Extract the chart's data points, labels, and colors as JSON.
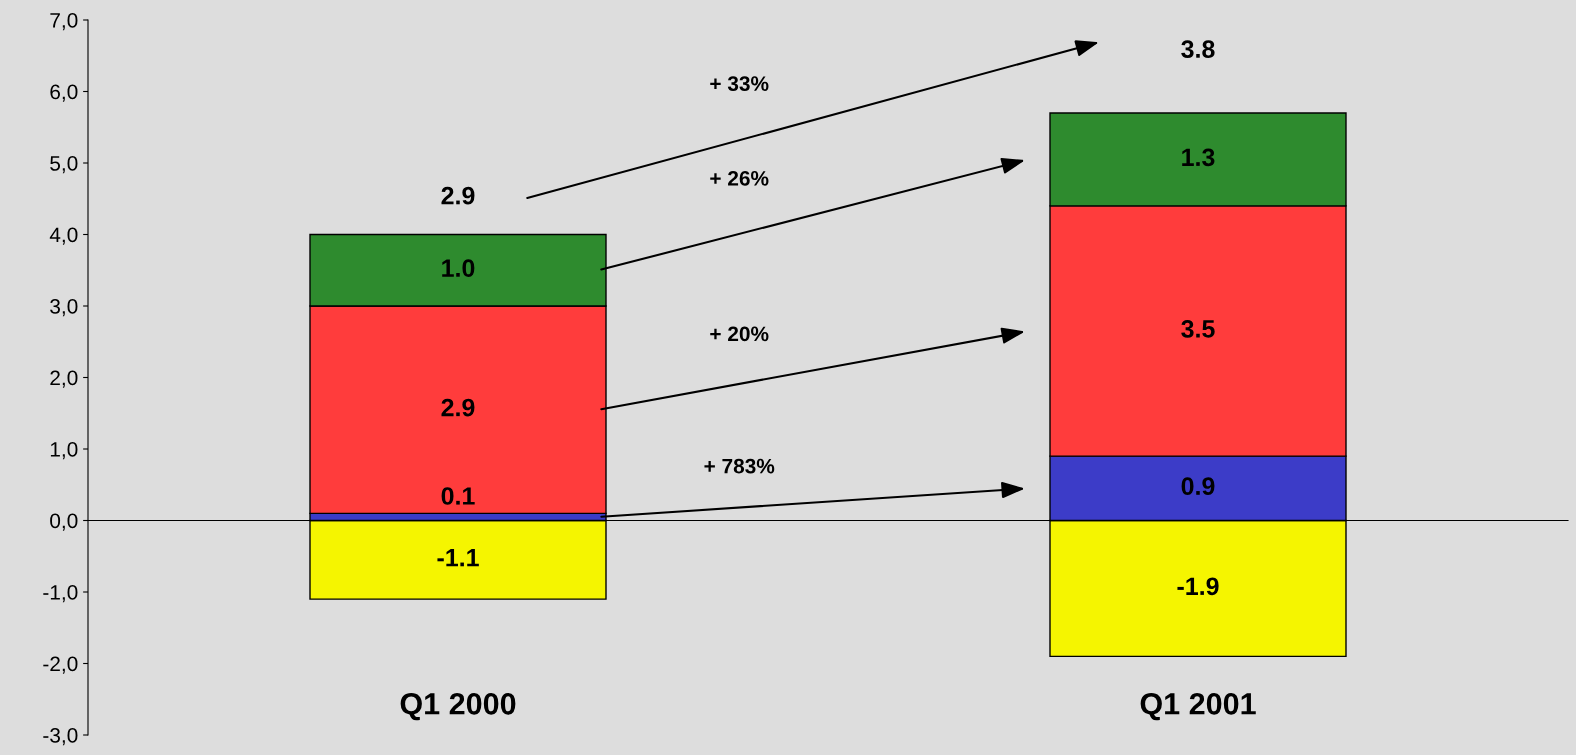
{
  "chart_data": {
    "type": "bar",
    "stacked": true,
    "categories": [
      "Q1 2000",
      "Q1 2001"
    ],
    "series": [
      {
        "color": "#f5f500",
        "values": [
          -1.1,
          -1.9
        ],
        "value_labels": [
          "-1.1",
          "-1.9"
        ]
      },
      {
        "color": "#3c3cc8",
        "values": [
          0.1,
          0.9
        ],
        "value_labels": [
          "0.1",
          "0.9"
        ]
      },
      {
        "color": "#ff3c3c",
        "values": [
          2.9,
          3.5
        ],
        "value_labels": [
          "2.9",
          "3.5"
        ]
      },
      {
        "color": "#2e8b2e",
        "values": [
          1.0,
          1.3
        ],
        "value_labels": [
          "1.0",
          "1.3"
        ]
      }
    ],
    "totals": [
      "2.9",
      "3.8"
    ],
    "annotations": [
      "+ 783%",
      "+ 20%",
      "+ 26%",
      "+ 33%"
    ],
    "ylim": [
      -3,
      7
    ],
    "yticks": [
      {
        "value": -3,
        "label": "-3,0"
      },
      {
        "value": -2,
        "label": "-2,0"
      },
      {
        "value": -1,
        "label": "-1,0"
      },
      {
        "value": 0,
        "label": "0,0"
      },
      {
        "value": 1,
        "label": "1,0"
      },
      {
        "value": 2,
        "label": "2,0"
      },
      {
        "value": 3,
        "label": "3,0"
      },
      {
        "value": 4,
        "label": "4,0"
      },
      {
        "value": 5,
        "label": "5,0"
      },
      {
        "value": 6,
        "label": "6,0"
      },
      {
        "value": 7,
        "label": "7,0"
      }
    ],
    "legend": false
  }
}
